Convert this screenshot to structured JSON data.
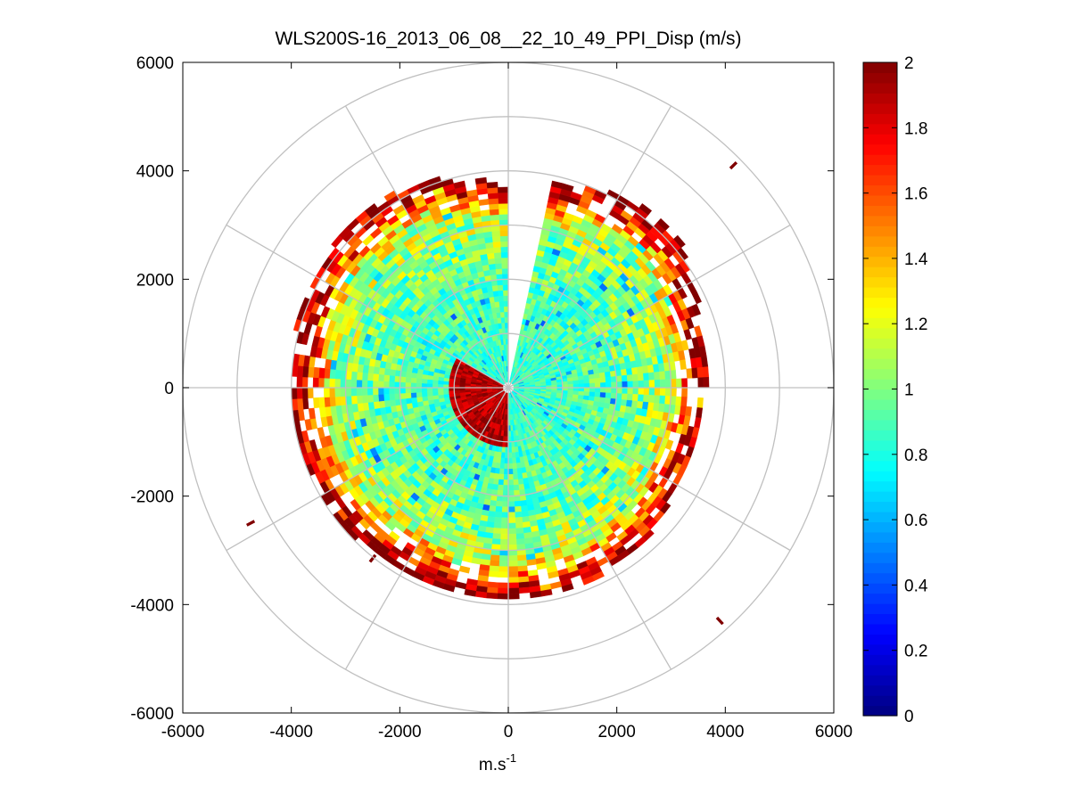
{
  "chart_data": {
    "type": "heatmap",
    "title": "WLS200S-16_2013_06_08__22_10_49_PPI_Disp (m/s)",
    "xlabel_base": "m.s",
    "xlabel_exp": "-1",
    "ylabel": "",
    "xlim": [
      -6000,
      6000
    ],
    "ylim": [
      -6000,
      6000
    ],
    "xticks": [
      -6000,
      -4000,
      -2000,
      0,
      2000,
      4000,
      6000
    ],
    "yticks": [
      -6000,
      -4000,
      -2000,
      0,
      2000,
      4000,
      6000
    ],
    "xtick_labels": [
      "-6000",
      "-4000",
      "-2000",
      "0",
      "2000",
      "4000",
      "6000"
    ],
    "ytick_labels": [
      "-6000",
      "-4000",
      "-2000",
      "0",
      "2000",
      "4000",
      "6000"
    ],
    "polar_grid": {
      "ring_radii": [
        1000,
        2000,
        3000,
        4000,
        5000,
        6000
      ],
      "spoke_angles_deg": [
        0,
        30,
        60,
        90,
        120,
        150,
        180,
        210,
        240,
        270,
        300,
        330
      ]
    },
    "colorbar": {
      "range": [
        0,
        2
      ],
      "ticks": [
        0,
        0.2,
        0.4,
        0.6,
        0.8,
        1,
        1.2,
        1.4,
        1.6,
        1.8,
        2
      ],
      "tick_labels": [
        "0",
        "0.2",
        "0.4",
        "0.6",
        "0.8",
        "1",
        "1.2",
        "1.4",
        "1.6",
        "1.8",
        "2"
      ],
      "colormap": "jet"
    },
    "scan": {
      "range_min": 100,
      "range_bins_m": 100,
      "azimuth_step_deg": 3,
      "gap_azimuth_deg": [
        0,
        10
      ],
      "field_profile": [
        {
          "range": 0,
          "value": 0.85
        },
        {
          "range": 1500,
          "value": 0.9
        },
        {
          "range": 2500,
          "value": 1.0
        },
        {
          "range": 3000,
          "value": 1.15
        },
        {
          "range": 3300,
          "value": 1.6
        },
        {
          "range": 3700,
          "value": 2.0
        }
      ],
      "edge_range_by_azimuth": [
        {
          "az": 0,
          "range": 3700
        },
        {
          "az": 20,
          "range": 3900
        },
        {
          "az": 45,
          "range": 4200
        },
        {
          "az": 70,
          "range": 3700
        },
        {
          "az": 90,
          "range": 3600
        },
        {
          "az": 120,
          "range": 3600
        },
        {
          "az": 150,
          "range": 3800
        },
        {
          "az": 180,
          "range": 3900
        },
        {
          "az": 210,
          "range": 3800
        },
        {
          "az": 240,
          "range": 4000
        },
        {
          "az": 270,
          "range": 3900
        },
        {
          "az": 300,
          "range": 4100
        },
        {
          "az": 330,
          "range": 4200
        },
        {
          "az": 360,
          "range": 3700
        }
      ],
      "near_field_hotspot": {
        "azimuth_deg": [
          180,
          300
        ],
        "range_max": 1100,
        "value": 1.9
      },
      "isolated_cells": [
        {
          "x": 4150,
          "y": 4100,
          "value": 2.0
        },
        {
          "x": 3900,
          "y": -4300,
          "value": 2.0
        },
        {
          "x": -4750,
          "y": -2500,
          "value": 2.0
        },
        {
          "x": -2500,
          "y": -3150,
          "value": 2.0
        }
      ]
    }
  }
}
